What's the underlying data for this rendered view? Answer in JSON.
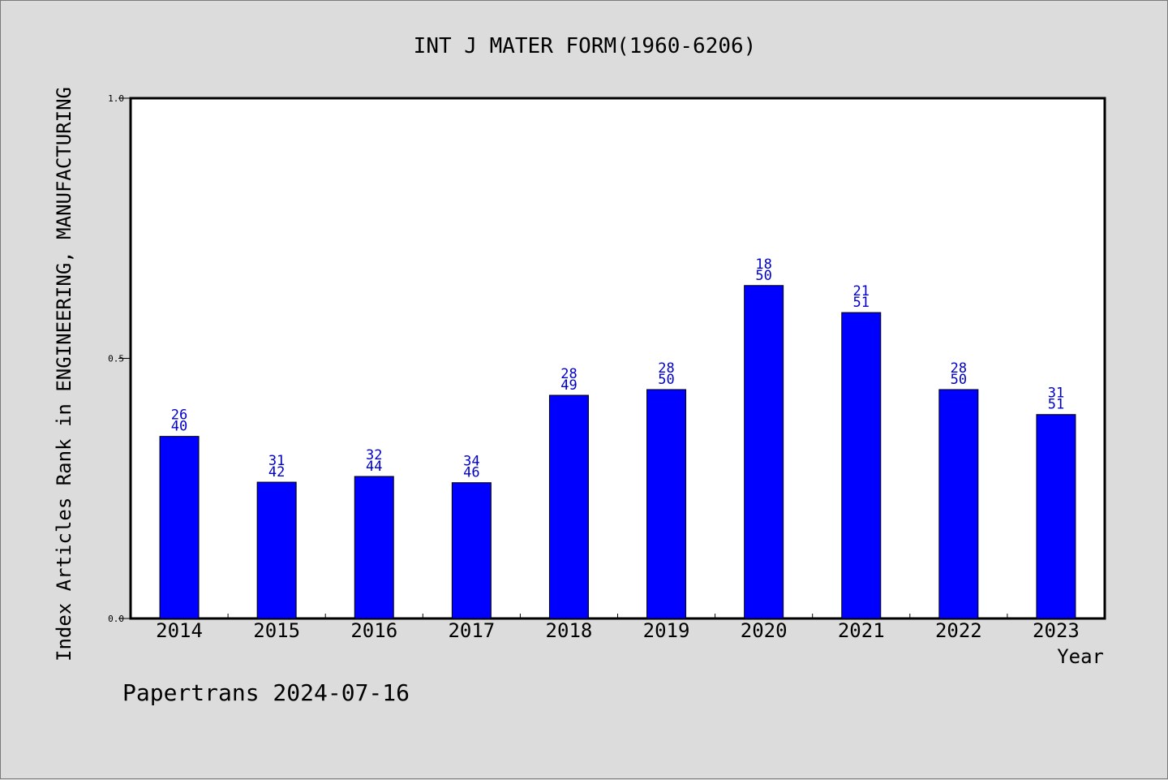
{
  "chart_data": {
    "type": "bar",
    "title": "INT J MATER FORM(1960-6206)",
    "xlabel": "Year",
    "ylabel": "Index Articles Rank in ENGINEERING, MANUFACTURING",
    "categories": [
      "2014",
      "2015",
      "2016",
      "2017",
      "2018",
      "2019",
      "2020",
      "2021",
      "2022",
      "2023"
    ],
    "values": [
      0.35,
      0.262,
      0.273,
      0.261,
      0.429,
      0.44,
      0.64,
      0.588,
      0.44,
      0.392
    ],
    "labels_top": [
      "26",
      "31",
      "32",
      "34",
      "28",
      "28",
      "18",
      "21",
      "28",
      "31"
    ],
    "labels_bottom": [
      "40",
      "42",
      "44",
      "46",
      "49",
      "50",
      "50",
      "51",
      "50",
      "51"
    ],
    "ylim": [
      0.0,
      1.0
    ],
    "yticks": [
      "0.0",
      "0.5",
      "1.0"
    ],
    "ytick_values": [
      0.0,
      0.5,
      1.0
    ],
    "grid": false,
    "bar_color": "#0000ff",
    "label_color": "#0000cc",
    "background": "#dcdcdc",
    "plot_background": "#ffffff"
  },
  "footer": "Papertrans 2024-07-16"
}
